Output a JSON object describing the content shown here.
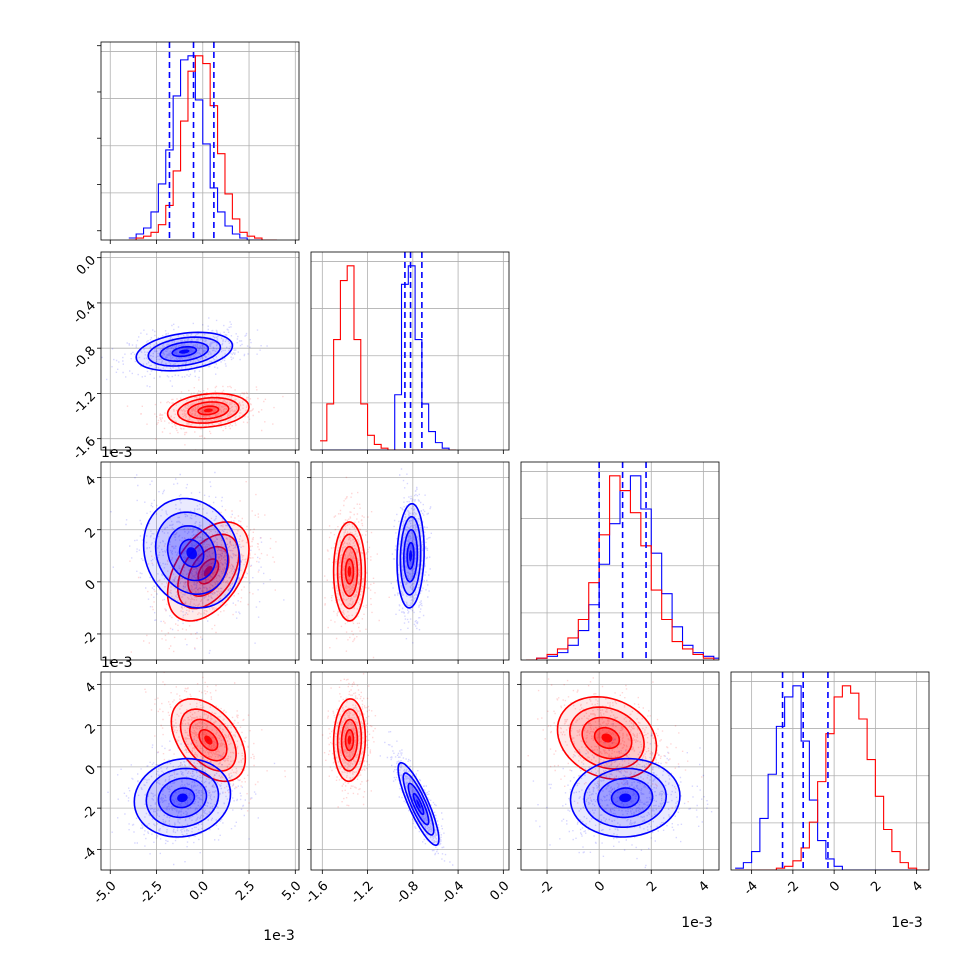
{
  "chart_data": {
    "type": "corner",
    "grid": true,
    "series": [
      {
        "name": "",
        "color": "#0000ff"
      },
      {
        "name": "",
        "color": "#ff0000"
      }
    ],
    "parameters": [
      {
        "scale_label": "1e-3",
        "range": [
          -5.5,
          5.2
        ],
        "ticks": [
          "-5.0",
          "-2.5",
          "0.0",
          "2.5",
          "5.0"
        ],
        "tick_values": [
          -5.0,
          -2.5,
          0.0,
          2.5,
          5.0
        ]
      },
      {
        "scale_label": "1e-3",
        "range": [
          -1.7,
          0.05
        ],
        "ticks": [
          "-1.6",
          "-1.2",
          "-0.8",
          "-0.4",
          "0.0"
        ],
        "tick_values": [
          -1.6,
          -1.2,
          -0.8,
          -0.4,
          0.0
        ]
      },
      {
        "scale_label": "1e-3",
        "range": [
          -3.0,
          4.6
        ],
        "ticks": [
          "-2",
          "0",
          "2",
          "4"
        ],
        "tick_values": [
          -2,
          0,
          2,
          4
        ]
      },
      {
        "scale_label": "1e-3",
        "range": [
          -5.0,
          4.6
        ],
        "ticks": [
          "-4",
          "-2",
          "0",
          "2",
          "4"
        ],
        "tick_values": [
          -4,
          -2,
          0,
          2,
          4
        ]
      }
    ],
    "diagonal": [
      {
        "param": 0,
        "blue": {
          "edges_start": -4.0,
          "bin_width": 0.4,
          "counts": [
            1,
            3,
            6,
            14,
            28,
            45,
            72,
            90,
            92,
            70,
            48,
            26,
            14,
            7,
            3,
            1,
            0,
            0,
            0,
            0
          ],
          "quantiles": [
            -1.8,
            -0.5,
            0.6
          ]
        },
        "red": {
          "edges_start": -4.0,
          "bin_width": 0.4,
          "counts": [
            0,
            1,
            2,
            4,
            8,
            18,
            36,
            62,
            88,
            96,
            92,
            70,
            45,
            24,
            11,
            4,
            2,
            1,
            0,
            0
          ]
        }
      },
      {
        "param": 1,
        "blue": {
          "edges_start": -1.62,
          "bin_width": 0.06,
          "counts": [
            0,
            0,
            0,
            0,
            0,
            0,
            0,
            0,
            0,
            0,
            0,
            30,
            90,
            100,
            60,
            25,
            10,
            4,
            1,
            0
          ],
          "quantiles": [
            -0.87,
            -0.82,
            -0.72
          ]
        },
        "red": {
          "edges_start": -1.62,
          "bin_width": 0.06,
          "counts": [
            5,
            25,
            60,
            92,
            100,
            60,
            25,
            8,
            3,
            1,
            0,
            0,
            0,
            0,
            0,
            0,
            0,
            0,
            0,
            0
          ]
        }
      },
      {
        "param": 2,
        "blue": {
          "edges_start": -2.8,
          "bin_width": 0.4,
          "counts": [
            0,
            1,
            2,
            4,
            8,
            16,
            30,
            52,
            74,
            92,
            100,
            82,
            58,
            36,
            18,
            8,
            4,
            2,
            1,
            0
          ],
          "quantiles": [
            0.0,
            0.9,
            1.8
          ]
        },
        "red": {
          "edges_start": -2.8,
          "bin_width": 0.4,
          "counts": [
            0,
            1,
            3,
            6,
            12,
            22,
            42,
            68,
            100,
            92,
            80,
            62,
            38,
            22,
            10,
            6,
            3,
            1,
            0,
            0
          ]
        }
      },
      {
        "param": 3,
        "blue": {
          "edges_start": -4.8,
          "bin_width": 0.4,
          "counts": [
            1,
            4,
            10,
            28,
            52,
            78,
            94,
            100,
            70,
            38,
            16,
            6,
            2,
            0,
            0,
            0,
            0,
            0,
            0,
            0,
            0,
            0,
            0,
            0
          ],
          "quantiles": [
            -2.5,
            -1.5,
            -0.3
          ]
        },
        "red": {
          "edges_start": -4.8,
          "bin_width": 0.4,
          "counts": [
            0,
            0,
            0,
            0,
            0,
            1,
            2,
            5,
            12,
            26,
            48,
            74,
            94,
            100,
            96,
            82,
            60,
            40,
            22,
            10,
            4,
            1,
            0,
            0
          ]
        }
      }
    ],
    "pairs": [
      {
        "x": 0,
        "y": 1,
        "blue": {
          "mean": [
            -1.0,
            -0.83
          ],
          "sd": [
            1.3,
            0.085
          ],
          "rho": 0.3
        },
        "red": {
          "mean": [
            0.3,
            -1.35
          ],
          "sd": [
            1.1,
            0.075
          ],
          "rho": 0.2
        }
      },
      {
        "x": 0,
        "y": 2,
        "blue": {
          "mean": [
            -0.6,
            1.1
          ],
          "sd": [
            1.3,
            1.05
          ],
          "rho": -0.15
        },
        "red": {
          "mean": [
            0.3,
            0.4
          ],
          "sd": [
            1.1,
            0.95
          ],
          "rho": 0.45
        }
      },
      {
        "x": 1,
        "y": 2,
        "blue": {
          "mean": [
            -0.82,
            1.0
          ],
          "sd": [
            0.06,
            1.0
          ],
          "rho": 0.1
        },
        "red": {
          "mean": [
            -1.36,
            0.4
          ],
          "sd": [
            0.07,
            0.95
          ],
          "rho": 0.0
        }
      },
      {
        "x": 0,
        "y": 3,
        "blue": {
          "mean": [
            -1.1,
            -1.5
          ],
          "sd": [
            1.3,
            0.95
          ],
          "rho": 0.1
        },
        "red": {
          "mean": [
            0.3,
            1.3
          ],
          "sd": [
            1.0,
            1.0
          ],
          "rho": -0.45
        }
      },
      {
        "x": 1,
        "y": 3,
        "blue": {
          "mean": [
            -0.75,
            -1.8
          ],
          "sd": [
            0.09,
            1.0
          ],
          "rho": -0.85
        },
        "red": {
          "mean": [
            -1.36,
            1.3
          ],
          "sd": [
            0.07,
            1.0
          ],
          "rho": 0.05
        }
      },
      {
        "x": 2,
        "y": 3,
        "blue": {
          "mean": [
            1.0,
            -1.5
          ],
          "sd": [
            1.05,
            0.95
          ],
          "rho": 0.05
        },
        "red": {
          "mean": [
            0.3,
            1.4
          ],
          "sd": [
            0.95,
            1.0
          ],
          "rho": -0.2
        }
      }
    ],
    "contour_levels_sigma": [
      0.5,
      1.0,
      1.5,
      2.0
    ]
  }
}
